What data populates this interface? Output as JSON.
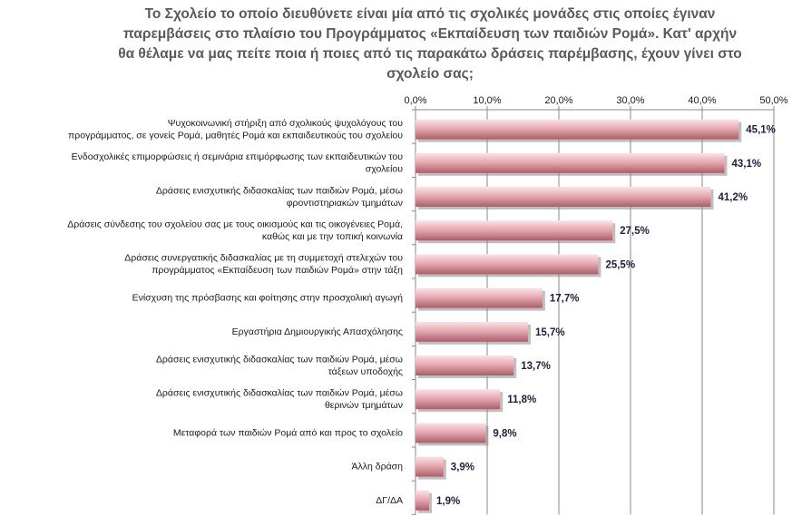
{
  "chart_data": {
    "type": "bar",
    "orientation": "horizontal",
    "title_lines": [
      "Το Σχολείο το οποίο διευθύνετε είναι μία από τις σχολικές μονάδες στις οποίες έγιναν",
      "παρεμβάσεις στο πλαίσιο του Προγράμματος «Εκπαίδευση των παιδιών Ρομά». Κατ' αρχήν",
      "θα  θέλαμε να μας πείτε ποια ή ποιες από τις παρακάτω δράσεις παρέμβασης, έχουν γίνει στο",
      "σχολείο σας;"
    ],
    "categories": [
      [
        "Ψυχοκοινωνική στήριξη από σχολικούς ψυχολόγους του",
        "προγράμματος,  σε γονείς Ρομά, μαθητές Ρομά και εκπαιδευτικούς του σχολείου"
      ],
      [
        "Ενδοσχολικές επιμορφώσεις ή σεμινάρια επιμόρφωσης των εκπαιδευτικών του",
        "σχολείου"
      ],
      [
        "Δράσεις ενισχυτικής διδασκαλίας των παιδιών Ρομά, μέσω",
        "φροντιστηριακών τμημάτων"
      ],
      [
        "Δράσεις σύνδεσης του σχολείου σας με τους οικισμούς και τις οικογένειες Ρομά,",
        "καθώς και  με την τοπική κοινωνία"
      ],
      [
        "Δράσεις συνεργατικής διδασκαλίας με τη συμμετοχή στελεχών του",
        "προγράμματος «Εκπαίδευση των παιδιών Ρομά» στην τάξη"
      ],
      [
        "Ενίσχυση της πρόσβασης και φοίτησης στην προσχολική αγωγή"
      ],
      [
        "Εργαστήρια Δημιουργικής Απασχόλησης"
      ],
      [
        "Δράσεις ενισχυτικής διδασκαλίας των παιδιών Ρομά, μέσω",
        "τάξεων υποδοχής"
      ],
      [
        "Δράσεις ενισχυτικής διδασκαλίας των παιδιών Ρομά, μέσω",
        "θερινών τμημάτων"
      ],
      [
        "Μεταφορά των παιδιών Ρομά από και προς το σχολείο"
      ],
      [
        "Άλλη δράση"
      ],
      [
        "ΔΓ/ΔΑ"
      ]
    ],
    "values": [
      45.1,
      43.1,
      41.2,
      27.5,
      25.5,
      17.7,
      15.7,
      13.7,
      11.8,
      9.8,
      3.9,
      1.9
    ],
    "data_labels": [
      "45,1%",
      "43,1%",
      "41,2%",
      "27,5%",
      "25,5%",
      "17,7%",
      "15,7%",
      "13,7%",
      "11,8%",
      "9,8%",
      "3,9%",
      "1,9%"
    ],
    "xlim": [
      0,
      50
    ],
    "xticks": [
      0,
      10,
      20,
      30,
      40,
      50
    ],
    "xtick_labels": [
      "0,0%",
      "10,0%",
      "20,0%",
      "30,0%",
      "40,0%",
      "50,0%"
    ],
    "x_axis_position": "top",
    "grid": true,
    "legend": "none",
    "colors": {
      "bar_light": "#fbe3e6",
      "bar_mid": "#e8aab2",
      "bar_dark": "#a8606a",
      "bar_shadow": "#8a8a8a",
      "title": "#5a5a5a",
      "gridline": "#888888"
    }
  }
}
